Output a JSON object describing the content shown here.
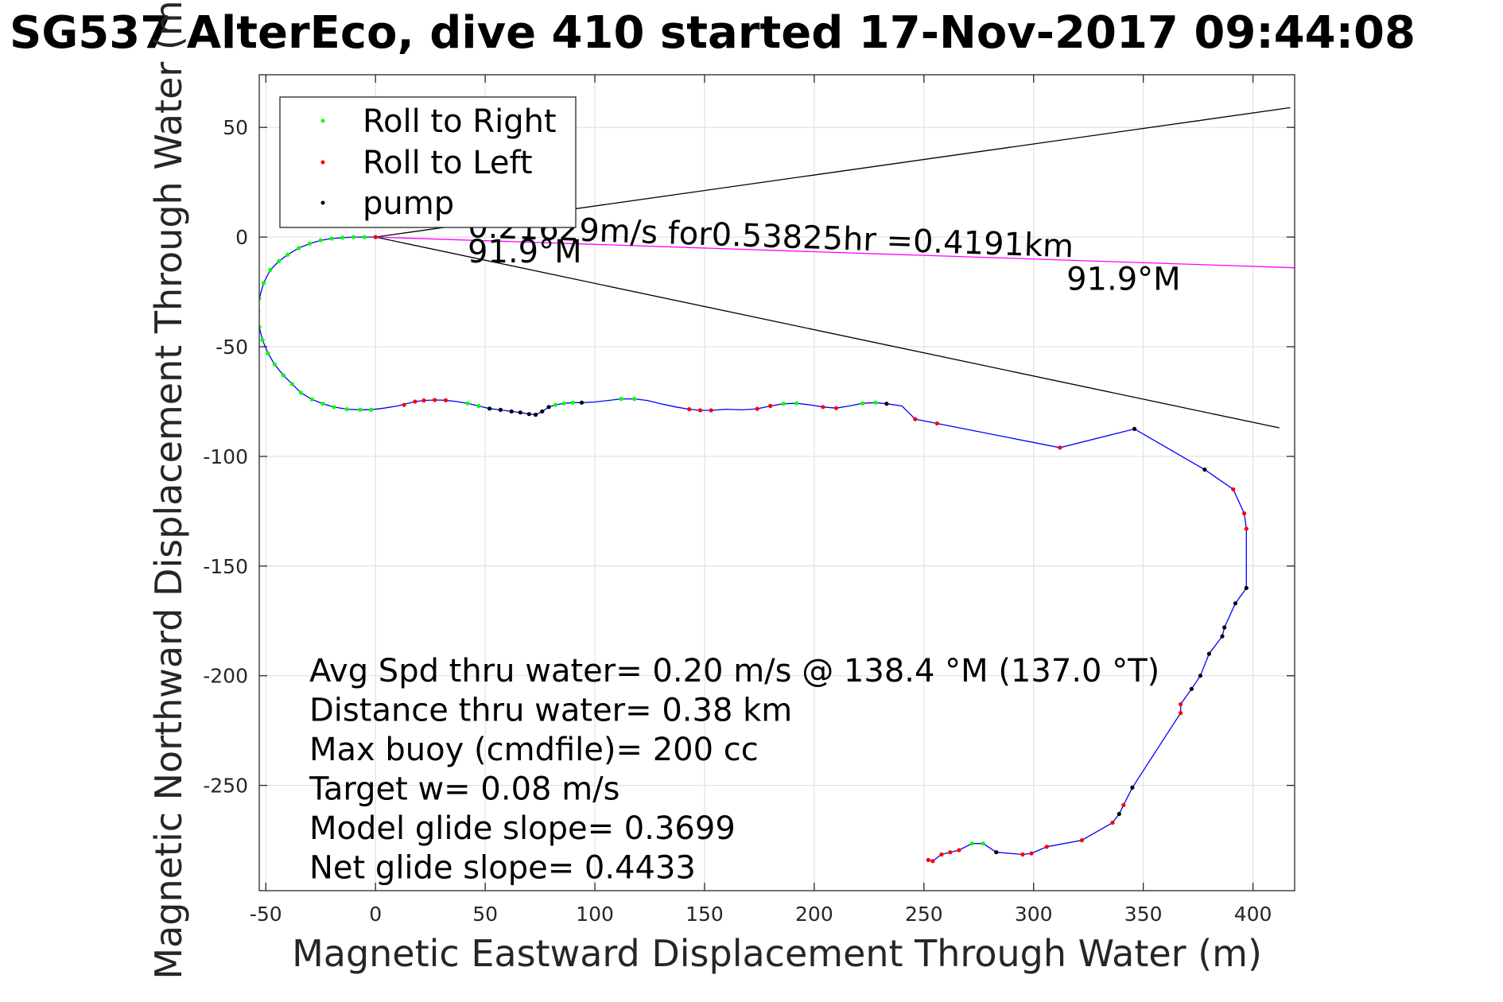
{
  "chart_data": {
    "type": "scatter",
    "title": "SG537 AlterEco, dive 410 started 17-Nov-2017 09:44:08",
    "xlabel": "Magnetic Eastward Displacement Through Water (m)",
    "ylabel": "Magnetic Northward Displacement Through Water (m)",
    "xlim": [
      -53,
      419
    ],
    "ylim": [
      -298,
      74
    ],
    "xticks": [
      -50,
      0,
      50,
      100,
      150,
      200,
      250,
      300,
      350,
      400
    ],
    "yticks": [
      50,
      0,
      -50,
      -100,
      -150,
      -200,
      -250
    ],
    "grid": true,
    "legend": {
      "placement": "top-left",
      "entries": [
        {
          "label": "Roll to Right",
          "color": "#00ff00"
        },
        {
          "label": "Roll to Left",
          "color": "#ff0000"
        },
        {
          "label": "pump",
          "color": "#000000"
        }
      ]
    },
    "track": {
      "color": "#0000ff",
      "points": [
        [
          0,
          0
        ],
        [
          -5,
          0
        ],
        [
          -10,
          0
        ],
        [
          -15,
          -0.3
        ],
        [
          -20,
          -0.7
        ],
        [
          -25,
          -1.5
        ],
        [
          -30,
          -3
        ],
        [
          -35,
          -5
        ],
        [
          -40,
          -8
        ],
        [
          -44,
          -11
        ],
        [
          -48,
          -15
        ],
        [
          -51,
          -21
        ],
        [
          -53,
          -28
        ],
        [
          -53.5,
          -34
        ],
        [
          -53,
          -41
        ],
        [
          -51.5,
          -47
        ],
        [
          -49,
          -53
        ],
        [
          -46,
          -58
        ],
        [
          -42,
          -63
        ],
        [
          -38,
          -67
        ],
        [
          -34,
          -71
        ],
        [
          -29,
          -74
        ],
        [
          -24,
          -76
        ],
        [
          -19,
          -77.5
        ],
        [
          -13,
          -78.5
        ],
        [
          -7,
          -78.7
        ],
        [
          -2,
          -78.7
        ],
        [
          4,
          -78
        ],
        [
          10,
          -77
        ],
        [
          14,
          -76
        ],
        [
          18,
          -75
        ],
        [
          22,
          -74.5
        ],
        [
          27,
          -74.3
        ],
        [
          32,
          -74.4
        ],
        [
          37,
          -75
        ],
        [
          42,
          -75.8
        ],
        [
          47,
          -77
        ],
        [
          52,
          -78.2
        ],
        [
          57,
          -78.8
        ],
        [
          62,
          -79.5
        ],
        [
          66,
          -80
        ],
        [
          70,
          -80.7
        ],
        [
          73,
          -81
        ],
        [
          76,
          -79.5
        ],
        [
          79,
          -77.5
        ],
        [
          82,
          -76.5
        ],
        [
          86,
          -75.8
        ],
        [
          90,
          -75.5
        ],
        [
          94,
          -75.5
        ],
        [
          100,
          -75.2
        ],
        [
          106,
          -74.5
        ],
        [
          112,
          -73.8
        ],
        [
          118,
          -73.8
        ],
        [
          124,
          -74.5
        ],
        [
          130,
          -76
        ],
        [
          137,
          -77.5
        ],
        [
          143,
          -78.5
        ],
        [
          148,
          -79
        ],
        [
          153,
          -79
        ],
        [
          160,
          -78.5
        ],
        [
          167,
          -78.8
        ],
        [
          174,
          -78.3
        ],
        [
          180,
          -77
        ],
        [
          186,
          -76
        ],
        [
          192,
          -75.8
        ],
        [
          198,
          -76.5
        ],
        [
          204,
          -77.5
        ],
        [
          210,
          -78
        ],
        [
          216,
          -77
        ],
        [
          222,
          -75.8
        ],
        [
          228,
          -75.5
        ],
        [
          233,
          -76
        ],
        [
          240,
          -77
        ],
        [
          246,
          -83
        ],
        [
          256,
          -85
        ],
        [
          312,
          -96
        ],
        [
          346,
          -87.5
        ],
        [
          378,
          -106
        ],
        [
          391,
          -115
        ],
        [
          396,
          -126
        ],
        [
          397,
          -133
        ],
        [
          397,
          -160
        ],
        [
          392,
          -167
        ],
        [
          387,
          -178
        ],
        [
          386,
          -182
        ],
        [
          380,
          -190
        ],
        [
          376,
          -200
        ],
        [
          372,
          -206
        ],
        [
          367,
          -213
        ],
        [
          367,
          -217
        ],
        [
          345,
          -251
        ],
        [
          341,
          -259
        ],
        [
          339,
          -263
        ],
        [
          336,
          -267
        ],
        [
          322,
          -275
        ],
        [
          306,
          -278
        ],
        [
          299,
          -281
        ],
        [
          295,
          -281.5
        ],
        [
          283,
          -280.5
        ],
        [
          277,
          -276.5
        ],
        [
          272,
          -276.5
        ],
        [
          266,
          -279.5
        ],
        [
          262,
          -280.5
        ],
        [
          258,
          -281.5
        ],
        [
          254,
          -284.5
        ],
        [
          252,
          -284
        ]
      ]
    },
    "series": [
      {
        "name": "Roll to Right",
        "color": "#00ff00",
        "points": [
          [
            -5,
            0
          ],
          [
            -10,
            0
          ],
          [
            -15,
            -0.3
          ],
          [
            -20,
            -0.7
          ],
          [
            -25,
            -1.5
          ],
          [
            -30,
            -3
          ],
          [
            -35,
            -5
          ],
          [
            -40,
            -8
          ],
          [
            -44,
            -11
          ],
          [
            -48,
            -15
          ],
          [
            -51,
            -21
          ],
          [
            -53,
            -28
          ],
          [
            -53.5,
            -34
          ],
          [
            -53,
            -41
          ],
          [
            -51.5,
            -47
          ],
          [
            -49,
            -53
          ],
          [
            -46,
            -58
          ],
          [
            -42,
            -63
          ],
          [
            -38,
            -67
          ],
          [
            -34,
            -71
          ],
          [
            -29,
            -74
          ],
          [
            -24,
            -76
          ],
          [
            -19,
            -77.5
          ],
          [
            -13,
            -78.5
          ],
          [
            -7,
            -78.7
          ],
          [
            -2,
            -78.7
          ],
          [
            42,
            -75.8
          ],
          [
            47,
            -77
          ],
          [
            82,
            -76.5
          ],
          [
            86,
            -75.8
          ],
          [
            90,
            -75.5
          ],
          [
            94,
            -75.5
          ],
          [
            112,
            -73.8
          ],
          [
            118,
            -73.8
          ],
          [
            186,
            -76
          ],
          [
            192,
            -75.8
          ],
          [
            222,
            -75.8
          ],
          [
            228,
            -75.5
          ],
          [
            272,
            -276.5
          ],
          [
            277,
            -276.5
          ]
        ]
      },
      {
        "name": "Roll to Left",
        "color": "#ff0000",
        "points": [
          [
            0,
            0
          ],
          [
            13,
            -76.5
          ],
          [
            18,
            -75
          ],
          [
            22,
            -74.5
          ],
          [
            27,
            -74.3
          ],
          [
            32,
            -74.4
          ],
          [
            143,
            -78.5
          ],
          [
            148,
            -79
          ],
          [
            153,
            -79
          ],
          [
            174,
            -78.3
          ],
          [
            180,
            -77
          ],
          [
            204,
            -77.5
          ],
          [
            210,
            -78
          ],
          [
            246,
            -83
          ],
          [
            256,
            -85
          ],
          [
            312,
            -96
          ],
          [
            391,
            -115
          ],
          [
            396,
            -126
          ],
          [
            397,
            -133
          ],
          [
            367,
            -213
          ],
          [
            367,
            -217
          ],
          [
            341,
            -259
          ],
          [
            336,
            -267
          ],
          [
            322,
            -275
          ],
          [
            306,
            -278
          ],
          [
            299,
            -281
          ],
          [
            295,
            -281.5
          ],
          [
            266,
            -279.5
          ],
          [
            262,
            -280.5
          ],
          [
            258,
            -281.5
          ],
          [
            254,
            -284.5
          ],
          [
            252,
            -284
          ]
        ]
      },
      {
        "name": "pump",
        "color": "#000000",
        "points": [
          [
            52,
            -78.2
          ],
          [
            57,
            -78.8
          ],
          [
            62,
            -79.5
          ],
          [
            66,
            -80
          ],
          [
            70,
            -80.7
          ],
          [
            73,
            -81
          ],
          [
            76,
            -79.5
          ],
          [
            79,
            -77.5
          ],
          [
            94,
            -75.5
          ],
          [
            233,
            -76
          ],
          [
            346,
            -87.5
          ],
          [
            378,
            -106
          ],
          [
            397,
            -160
          ],
          [
            392,
            -167
          ],
          [
            387,
            -178
          ],
          [
            386,
            -182
          ],
          [
            380,
            -190
          ],
          [
            376,
            -200
          ],
          [
            372,
            -206
          ],
          [
            345,
            -251
          ],
          [
            339,
            -263
          ],
          [
            283,
            -280.5
          ]
        ]
      }
    ],
    "lines": [
      {
        "name": "heading-wedge-upper",
        "color": "#000000",
        "points": [
          [
            0,
            0
          ],
          [
            417,
            59
          ]
        ]
      },
      {
        "name": "heading-wedge-lower",
        "color": "#000000",
        "points": [
          [
            0,
            0
          ],
          [
            412,
            -87
          ]
        ]
      },
      {
        "name": "current-vector",
        "color": "#ff00ff",
        "points": [
          [
            0,
            0
          ],
          [
            419,
            -14
          ]
        ]
      }
    ],
    "annotations": [
      {
        "name": "current-speed-text",
        "text": "0.21629m/s for0.53825hr =0.4191km",
        "x": 42,
        "y": 0,
        "rotate": 1.9
      },
      {
        "name": "heading-near-origin",
        "text": "91.9°M",
        "x": 42,
        "y": -11.5,
        "rotate": 0
      },
      {
        "name": "heading-far",
        "text": "91.9°M",
        "x": 315,
        "y": -24,
        "rotate": 0
      }
    ],
    "summary_lines": [
      "Avg Spd thru water=  0.20 m/s @ 138.4 °M (137.0 °T)",
      "Distance thru water=  0.38 km",
      "Max buoy (cmdfile)= 200 cc",
      "Target w= 0.08 m/s",
      "Model glide slope= 0.3699",
      "Net glide slope= 0.4433"
    ]
  }
}
